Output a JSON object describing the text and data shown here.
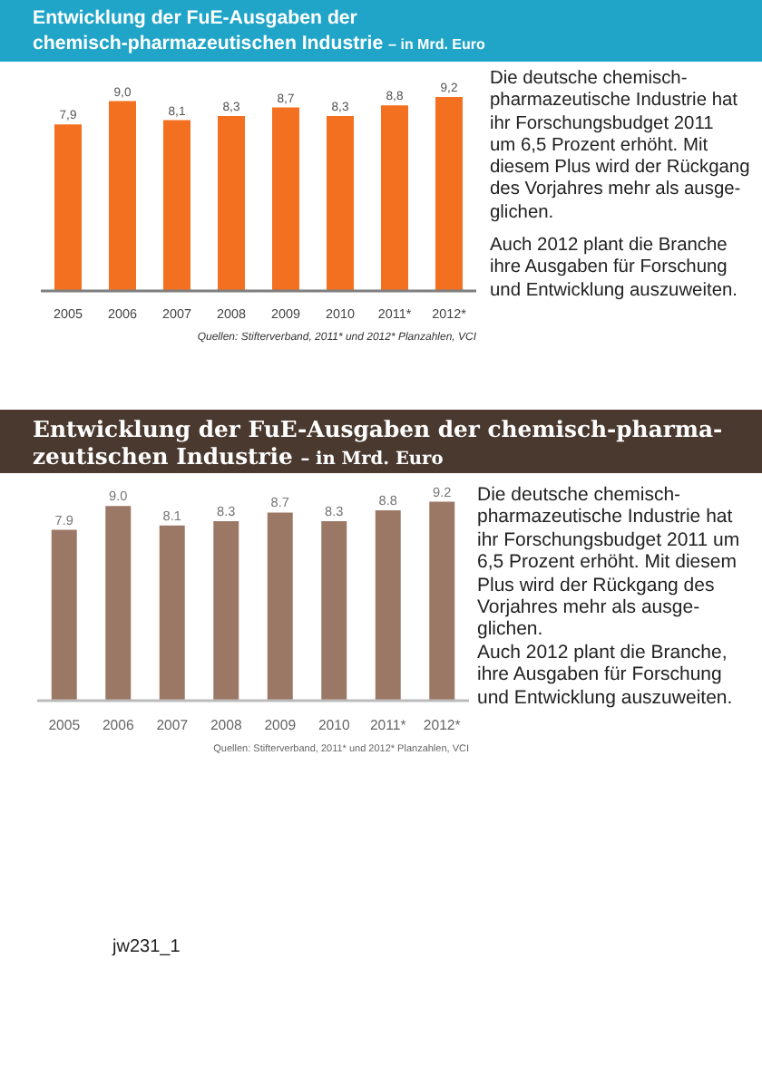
{
  "chart_data": [
    {
      "type": "bar",
      "title": "Entwicklung der FuE-Ausgaben der\nchemisch-pharmazeutischen Industrie",
      "subtitle": "– in Mrd. Euro",
      "categories": [
        "2005",
        "2006",
        "2007",
        "2008",
        "2009",
        "2010",
        "2011*",
        "2012*"
      ],
      "values": [
        7.9,
        9.0,
        8.1,
        8.3,
        8.7,
        8.3,
        8.8,
        9.2
      ],
      "color": "#f37021",
      "value_labels": [
        "7,9",
        "9,0",
        "8,1",
        "8,3",
        "8,7",
        "8,3",
        "8,8",
        "9,2"
      ],
      "tick_labels": "x",
      "annotations": [
        "Die deutsche chemisch-\npharmazeutische Industrie hat\nihr Forschungsbudget 2011\num 6,5 Prozent erhöht. Mit\ndiesem Plus wird der Rückgang\ndes Vorjahres mehr als ausge-\nglichen.\n\nAuch 2012 plant die Branche\nihre Ausgaben für Forschung\nund Entwicklung auszuweiten.",
        "Quellen: Stifterverband, 2011* und 2012* Planzahlen, VCI"
      ]
    },
    {
      "type": "bar",
      "title": "Entwicklung der FuE-Ausgaben der chemisch-pharma-\nzeutischen Industrie",
      "subtitle": "– in Mrd. Euro",
      "categories": [
        "2005",
        "2006",
        "2007",
        "2008",
        "2009",
        "2010",
        "2011*",
        "2012*"
      ],
      "values": [
        7.9,
        9.0,
        8.1,
        8.3,
        8.7,
        8.3,
        8.8,
        9.2
      ],
      "color": "#9b7866",
      "value_labels": [
        "7.9",
        "9.0",
        "8.1",
        "8.3",
        "8.7",
        "8.3",
        "8.8",
        "9.2"
      ],
      "tick_labels": "x",
      "annotations": [
        "Die deutsche chemisch-\npharmazeutische Industrie hat\nihr Forschungsbudget 2011 um\n6,5 Prozent erhöht. Mit diesem\nPlus wird der Rückgang des\nVorjahres mehr als ausge-\nglichen.\nAuch 2012 plant die Branche,\nihre Ausgaben für Forschung\nund Entwicklung auszuweiten.",
        "Quellen: Stifterverband, 2011* und 2012* Planzahlen, VCI",
        "jw231_1"
      ]
    }
  ]
}
